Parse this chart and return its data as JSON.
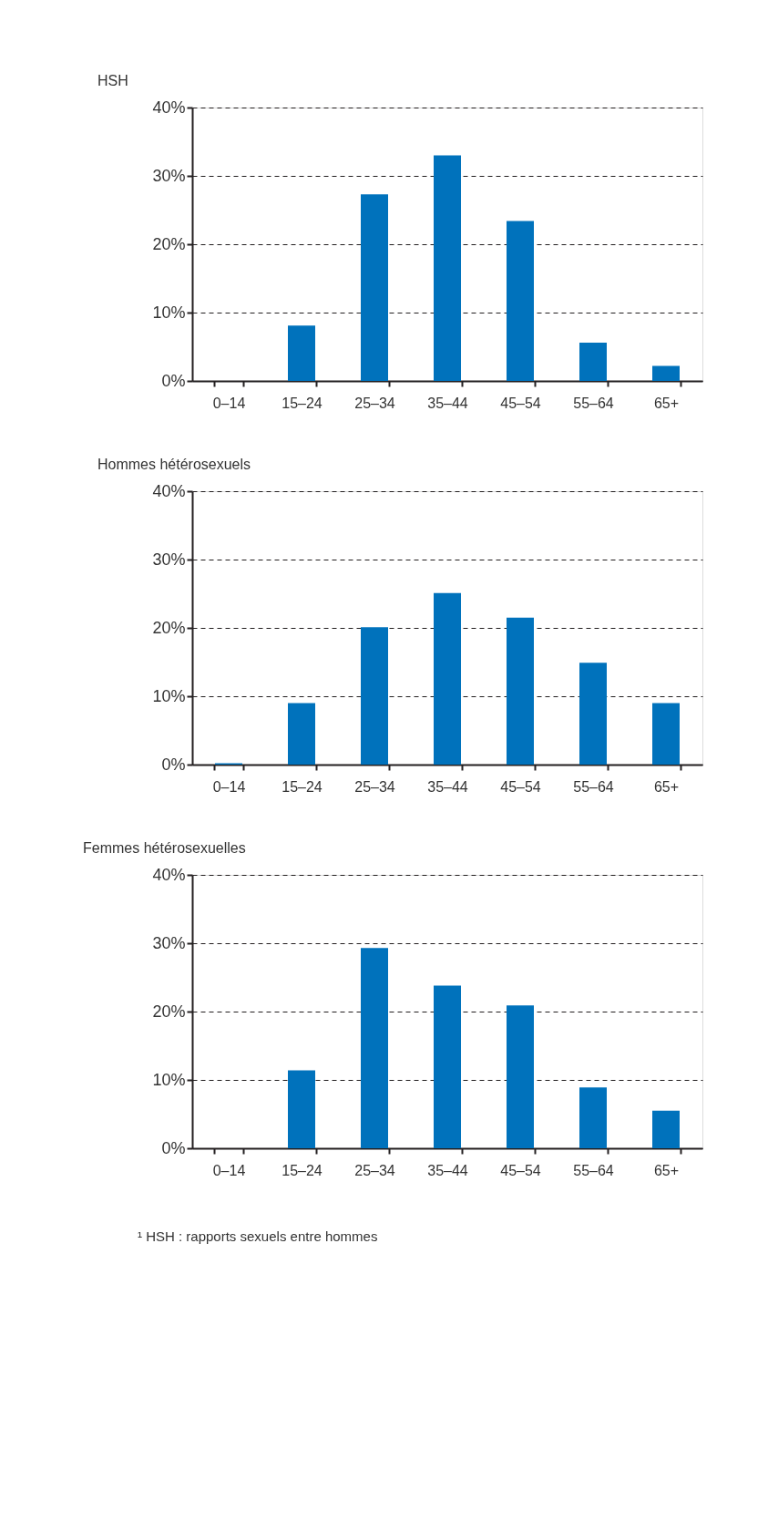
{
  "chart_data": [
    {
      "type": "bar",
      "title": "HSH",
      "categories": [
        "0–14",
        "15–24",
        "25–34",
        "35–44",
        "45–54",
        "55–64",
        "65+"
      ],
      "values": [
        0,
        8.1,
        27.3,
        33.0,
        23.4,
        5.6,
        2.2
      ],
      "color": "#0072bc",
      "ylim": [
        0,
        40
      ],
      "yticks": [
        {
          "value": 0,
          "label": "0%"
        },
        {
          "value": 10,
          "label": "10%"
        },
        {
          "value": 20,
          "label": "20%"
        },
        {
          "value": 30,
          "label": "30%"
        },
        {
          "value": 40,
          "label": "40%"
        }
      ],
      "grid": "y"
    },
    {
      "type": "bar",
      "title": "Hommes hétérosexuels",
      "categories": [
        "0–14",
        "15–24",
        "25–34",
        "35–44",
        "45–54",
        "55–64",
        "65+"
      ],
      "values": [
        0.2,
        9.0,
        20.1,
        25.1,
        21.5,
        14.9,
        9.0
      ],
      "color": "#0072bc",
      "ylim": [
        0,
        40
      ],
      "yticks": [
        {
          "value": 0,
          "label": "0%"
        },
        {
          "value": 10,
          "label": "10%"
        },
        {
          "value": 20,
          "label": "20%"
        },
        {
          "value": 30,
          "label": "30%"
        },
        {
          "value": 40,
          "label": "40%"
        }
      ],
      "grid": "y"
    },
    {
      "type": "bar",
      "title": "Femmes hétérosexuelles",
      "categories": [
        "0–14",
        "15–24",
        "25–34",
        "35–44",
        "45–54",
        "55–64",
        "65+"
      ],
      "values": [
        0,
        11.4,
        29.3,
        23.8,
        20.9,
        8.9,
        5.5
      ],
      "color": "#0072bc",
      "ylim": [
        0,
        40
      ],
      "yticks": [
        {
          "value": 0,
          "label": "0%"
        },
        {
          "value": 10,
          "label": "10%"
        },
        {
          "value": 20,
          "label": "20%"
        },
        {
          "value": 30,
          "label": "30%"
        },
        {
          "value": 40,
          "label": "40%"
        }
      ],
      "grid": "y",
      "annotations": [
        "¹ HSH : rapports sexuels entre hommes"
      ]
    }
  ]
}
